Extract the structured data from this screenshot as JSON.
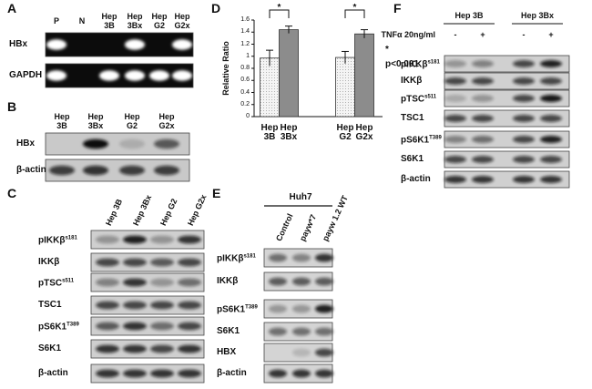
{
  "panels": {
    "a": {
      "label": "A",
      "lanes": [
        "P",
        "N",
        "Hep\n3B",
        "Hep\n3Bx",
        "Hep\nG2",
        "Hep\nG2x"
      ],
      "rows": [
        "HBx",
        "GAPDH"
      ]
    },
    "b": {
      "label": "B",
      "lanes": [
        "Hep\n3B",
        "Hep\n3Bx",
        "Hep\nG2",
        "Hep\nG2x"
      ],
      "rows": [
        "HBx",
        "β-actin"
      ]
    },
    "c": {
      "label": "C",
      "lanes": [
        "Hep 3B",
        "Hep 3Bx",
        "Hep G2",
        "Hep G2x"
      ],
      "rows": [
        {
          "name": "pIKKβ",
          "sup": "s181"
        },
        {
          "name": "IKKβ"
        },
        {
          "name": "pTSC",
          "sup": "s511"
        },
        {
          "name": "TSC1"
        },
        {
          "name": "pS6K1",
          "sup": "T389"
        },
        {
          "name": "S6K1"
        },
        {
          "name": "β-actin"
        }
      ]
    },
    "e": {
      "label": "E",
      "group": "Huh7",
      "lanes": [
        "Control",
        "payw*7",
        "payw 1.2 WT"
      ],
      "rows": [
        {
          "name": "pIKKβ",
          "sup": "s181"
        },
        {
          "name": "IKKβ"
        },
        {
          "name": "pS6K1",
          "sup": "T389"
        },
        {
          "name": "S6K1"
        },
        {
          "name": "HBX"
        },
        {
          "name": "β-actin"
        }
      ]
    },
    "f": {
      "label": "F",
      "groups": [
        "Hep 3B",
        "Hep 3Bx"
      ],
      "treatment": "TNFα 20ng/ml",
      "signs": [
        "-",
        "+",
        "-",
        "+"
      ],
      "rows": [
        {
          "name": "pIKKβ",
          "sup": "s181"
        },
        {
          "name": "IKKβ"
        },
        {
          "name": "pTSC",
          "sup": "s511"
        },
        {
          "name": "TSC1"
        },
        {
          "name": "pS6K1",
          "sup": "T389"
        },
        {
          "name": "S6K1"
        },
        {
          "name": "β-actin"
        }
      ]
    }
  },
  "chart_data": {
    "type": "bar",
    "label": "D",
    "ylabel": "Relative Ratio",
    "categories": [
      "Hep\n3B",
      "Hep\n3Bx",
      "Hep\nG2",
      "Hep\nG2x"
    ],
    "values": [
      0.97,
      1.44,
      0.98,
      1.37
    ],
    "errors": [
      0.13,
      0.06,
      0.1,
      0.07
    ],
    "colors": [
      "#f4f4f4",
      "#8c8c8c",
      "#f4f4f4",
      "#8c8c8c"
    ],
    "ylim": [
      0,
      1.6
    ],
    "yticks": [
      0,
      0.2,
      0.4,
      0.6,
      0.8,
      1,
      1.2,
      1.4,
      1.6
    ],
    "annotations": [
      "*",
      "*",
      "*",
      "p<0.001"
    ]
  }
}
